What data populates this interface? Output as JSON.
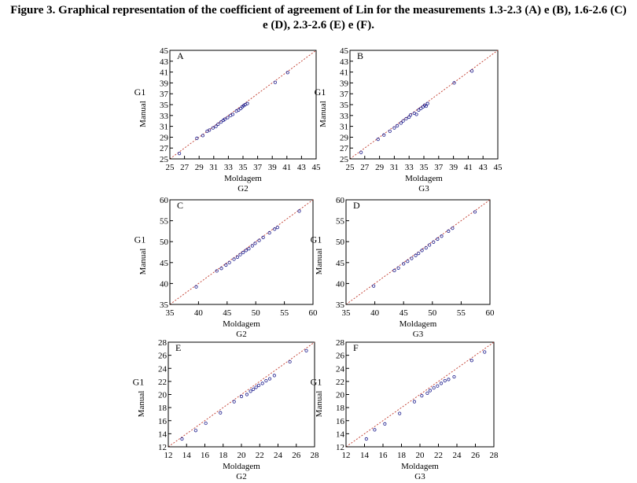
{
  "caption": {
    "line1": "Figure 3. Graphical representation of the coefficient of agreement of Lin for the measurements 1.3-2.3 (A) e (B), 1.6-2.6 (C)",
    "line2": "e (D), 2.3-2.6 (E) e (F)."
  },
  "colors": {
    "points": "#1a1a8c",
    "identity_line": "#c0392b",
    "axes": "#000000"
  },
  "chart_data": [
    {
      "type": "scatter",
      "panel_label": "A",
      "ylabel": "Manual",
      "y_group": "G1",
      "xlabel": "Moldagem",
      "x_group": "G2",
      "xlim": [
        25,
        45
      ],
      "ylim": [
        25,
        45
      ],
      "xticks": [
        25,
        27,
        29,
        31,
        33,
        35,
        37,
        39,
        41,
        43,
        45
      ],
      "yticks": [
        25,
        27,
        29,
        31,
        33,
        35,
        37,
        39,
        41,
        43,
        45
      ],
      "reference_line": "y = x",
      "points": [
        [
          26.3,
          26.0
        ],
        [
          28.7,
          28.8
        ],
        [
          29.5,
          29.3
        ],
        [
          30.1,
          30.1
        ],
        [
          30.4,
          30.3
        ],
        [
          30.9,
          30.7
        ],
        [
          31.3,
          31.0
        ],
        [
          31.6,
          31.4
        ],
        [
          32.0,
          31.8
        ],
        [
          32.3,
          32.1
        ],
        [
          32.5,
          32.3
        ],
        [
          32.9,
          32.6
        ],
        [
          33.3,
          33.0
        ],
        [
          33.6,
          33.2
        ],
        [
          34.1,
          33.8
        ],
        [
          34.4,
          34.0
        ],
        [
          34.7,
          34.3
        ],
        [
          34.9,
          34.6
        ],
        [
          35.1,
          34.8
        ],
        [
          35.3,
          35.0
        ],
        [
          35.6,
          35.2
        ],
        [
          39.4,
          39.1
        ],
        [
          41.1,
          40.9
        ]
      ]
    },
    {
      "type": "scatter",
      "panel_label": "B",
      "ylabel": "Manual",
      "y_group": "G1",
      "xlabel": "Moldagem",
      "x_group": "G3",
      "xlim": [
        25,
        45
      ],
      "ylim": [
        25,
        45
      ],
      "xticks": [
        25,
        27,
        29,
        31,
        33,
        35,
        37,
        39,
        41,
        43,
        45
      ],
      "yticks": [
        25,
        27,
        29,
        31,
        33,
        35,
        37,
        39,
        41,
        43,
        45
      ],
      "reference_line": "y = x",
      "points": [
        [
          26.5,
          26.2
        ],
        [
          28.8,
          28.6
        ],
        [
          29.6,
          29.4
        ],
        [
          30.4,
          30.1
        ],
        [
          31.0,
          30.7
        ],
        [
          31.4,
          31.1
        ],
        [
          31.9,
          31.6
        ],
        [
          32.2,
          32.0
        ],
        [
          32.6,
          32.4
        ],
        [
          33.0,
          32.7
        ],
        [
          33.2,
          33.1
        ],
        [
          33.7,
          33.4
        ],
        [
          34.0,
          33.2
        ],
        [
          34.3,
          34.0
        ],
        [
          34.6,
          34.3
        ],
        [
          34.9,
          34.6
        ],
        [
          35.1,
          34.9
        ],
        [
          35.3,
          34.7
        ],
        [
          35.5,
          35.2
        ],
        [
          39.1,
          39.0
        ],
        [
          41.5,
          41.2
        ]
      ]
    },
    {
      "type": "scatter",
      "panel_label": "C",
      "ylabel": "Manual",
      "y_group": "G1",
      "xlabel": "Moldagem",
      "x_group": "G2",
      "xlim": [
        35,
        60
      ],
      "ylim": [
        35,
        60
      ],
      "xticks": [
        35,
        40,
        45,
        50,
        55,
        60
      ],
      "yticks": [
        35,
        40,
        45,
        50,
        55,
        60
      ],
      "reference_line": "y = x",
      "points": [
        [
          39.6,
          39.2
        ],
        [
          43.2,
          43.0
        ],
        [
          44.0,
          43.6
        ],
        [
          44.8,
          44.4
        ],
        [
          45.4,
          45.0
        ],
        [
          46.2,
          45.8
        ],
        [
          46.8,
          46.3
        ],
        [
          47.3,
          46.9
        ],
        [
          47.8,
          47.4
        ],
        [
          48.3,
          47.9
        ],
        [
          48.8,
          48.3
        ],
        [
          49.4,
          49.0
        ],
        [
          49.9,
          49.6
        ],
        [
          50.6,
          50.3
        ],
        [
          51.3,
          51.0
        ],
        [
          52.4,
          52.1
        ],
        [
          53.3,
          53.0
        ],
        [
          53.8,
          53.4
        ],
        [
          57.6,
          57.3
        ]
      ]
    },
    {
      "type": "scatter",
      "panel_label": "D",
      "ylabel": "Manual",
      "y_group": "G1",
      "xlabel": "Moldagem",
      "x_group": "G3",
      "xlim": [
        35,
        60
      ],
      "ylim": [
        35,
        60
      ],
      "xticks": [
        35,
        40,
        45,
        50,
        55,
        60
      ],
      "yticks": [
        35,
        40,
        45,
        50,
        55,
        60
      ],
      "reference_line": "y = x",
      "points": [
        [
          39.8,
          39.4
        ],
        [
          43.4,
          43.1
        ],
        [
          44.1,
          43.7
        ],
        [
          45.0,
          44.7
        ],
        [
          45.7,
          45.3
        ],
        [
          46.4,
          46.0
        ],
        [
          47.1,
          46.7
        ],
        [
          47.6,
          47.2
        ],
        [
          48.2,
          47.9
        ],
        [
          48.9,
          48.5
        ],
        [
          49.5,
          49.2
        ],
        [
          50.2,
          49.9
        ],
        [
          50.9,
          50.6
        ],
        [
          51.6,
          51.3
        ],
        [
          52.8,
          52.5
        ],
        [
          53.5,
          53.2
        ],
        [
          57.4,
          57.1
        ]
      ]
    },
    {
      "type": "scatter",
      "panel_label": "E",
      "ylabel": "Manual",
      "y_group": "G1",
      "xlabel": "Moldagem",
      "x_group": "G2",
      "xlim": [
        12,
        28
      ],
      "ylim": [
        12,
        28
      ],
      "xticks": [
        12,
        14,
        16,
        18,
        20,
        22,
        24,
        26,
        28
      ],
      "yticks": [
        12,
        14,
        16,
        18,
        20,
        22,
        24,
        26,
        28
      ],
      "reference_line": "y = x",
      "points": [
        [
          13.5,
          13.2
        ],
        [
          15.0,
          14.5
        ],
        [
          16.1,
          15.6
        ],
        [
          17.7,
          17.2
        ],
        [
          19.2,
          18.9
        ],
        [
          20.0,
          19.7
        ],
        [
          20.6,
          20.0
        ],
        [
          21.0,
          20.5
        ],
        [
          21.3,
          20.8
        ],
        [
          21.6,
          21.1
        ],
        [
          21.9,
          21.4
        ],
        [
          22.3,
          21.7
        ],
        [
          22.7,
          22.1
        ],
        [
          23.1,
          22.4
        ],
        [
          23.6,
          22.9
        ],
        [
          25.3,
          25.0
        ],
        [
          27.1,
          26.7
        ]
      ]
    },
    {
      "type": "scatter",
      "panel_label": "F",
      "ylabel": "Manual",
      "y_group": "G1",
      "xlabel": "Moldagem",
      "x_group": "G3",
      "xlim": [
        12,
        28
      ],
      "ylim": [
        12,
        28
      ],
      "xticks": [
        12,
        14,
        16,
        18,
        20,
        22,
        24,
        26,
        28
      ],
      "yticks": [
        12,
        14,
        16,
        18,
        20,
        22,
        24,
        26,
        28
      ],
      "reference_line": "y = x",
      "points": [
        [
          14.2,
          13.2
        ],
        [
          15.1,
          14.6
        ],
        [
          16.2,
          15.5
        ],
        [
          17.8,
          17.1
        ],
        [
          19.4,
          18.9
        ],
        [
          20.2,
          19.8
        ],
        [
          20.8,
          20.2
        ],
        [
          21.1,
          20.6
        ],
        [
          21.5,
          21.0
        ],
        [
          21.9,
          21.3
        ],
        [
          22.3,
          21.7
        ],
        [
          22.7,
          22.1
        ],
        [
          23.1,
          22.3
        ],
        [
          23.7,
          22.7
        ],
        [
          25.6,
          25.2
        ],
        [
          27.0,
          26.5
        ]
      ]
    }
  ]
}
